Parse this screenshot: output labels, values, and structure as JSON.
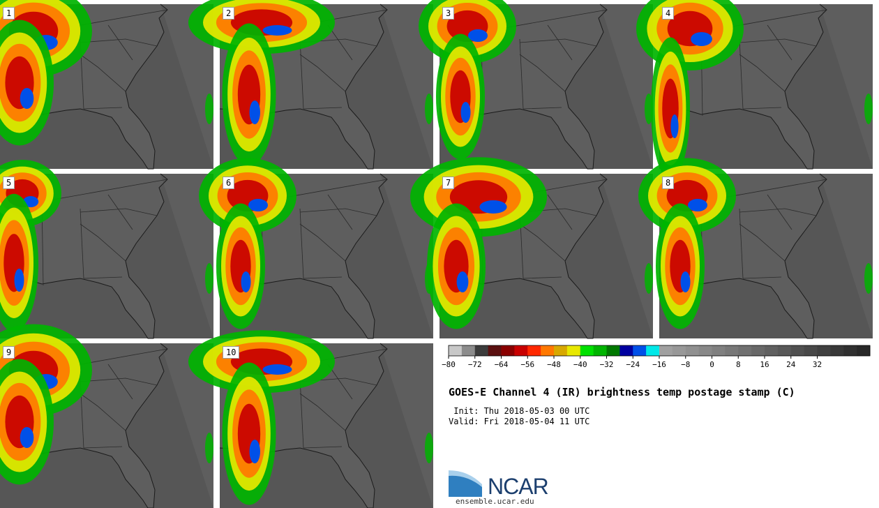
{
  "panels": [
    {
      "label": "1",
      "storm": "west-heavy"
    },
    {
      "label": "2",
      "storm": "north"
    },
    {
      "label": "3",
      "storm": "northwest"
    },
    {
      "label": "4",
      "storm": "west"
    },
    {
      "label": "5",
      "storm": "west-band"
    },
    {
      "label": "6",
      "storm": "northwest"
    },
    {
      "label": "7",
      "storm": "north-heavy"
    },
    {
      "label": "8",
      "storm": "northwest"
    },
    {
      "label": "9",
      "storm": "west-heavy"
    },
    {
      "label": "10",
      "storm": "north"
    }
  ],
  "colorbar": {
    "colors": [
      "#c8c8c8",
      "#8c8c8c",
      "#3c3c3c",
      "#5a1010",
      "#8a0000",
      "#c80000",
      "#ff2800",
      "#ff7800",
      "#d8a800",
      "#e8e800",
      "#00e000",
      "#00b400",
      "#007800",
      "#0000a0",
      "#0050e8",
      "#00e8e8",
      "#a0a0a0",
      "#989898",
      "#909090",
      "#888888",
      "#808080",
      "#787878",
      "#707070",
      "#686868",
      "#606060",
      "#585858",
      "#505050",
      "#484848",
      "#404040",
      "#383838",
      "#303030",
      "#282828"
    ],
    "ticks": [
      "−80",
      "−72",
      "−64",
      "−56",
      "−48",
      "−40",
      "−32",
      "−24",
      "−16",
      "−8",
      "0",
      "8",
      "16",
      "24",
      "32"
    ]
  },
  "title": "GOES-E Channel 4 (IR) brightness temp postage stamp (C)",
  "init": " Init: Thu 2018-05-03 00 UTC",
  "valid": "Valid: Fri 2018-05-04 11 UTC",
  "logo": {
    "text": "NCAR",
    "url": "ensemble.ucar.edu",
    "icon": "ncar-logo-icon"
  }
}
